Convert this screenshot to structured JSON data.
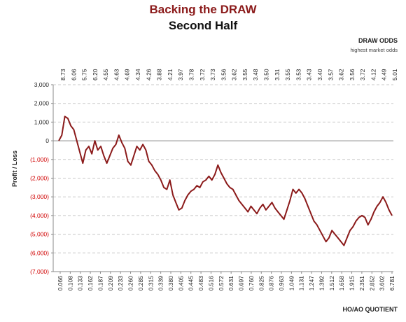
{
  "chart_data": {
    "type": "line",
    "title": "Backing the DRAW",
    "subtitle": "Second Half",
    "xlabel": "HO/AO QUOTIENT",
    "ylabel": "Profit / Loss",
    "secondary_xlabel": "DRAW ODDS",
    "secondary_xlabel_note": "highest market odds",
    "ylim": [
      -7000,
      3000
    ],
    "yticks": [
      3000,
      2000,
      1000,
      0,
      -1000,
      -2000,
      -3000,
      -4000,
      -5000,
      -6000,
      -7000
    ],
    "ytick_labels": [
      "3,000",
      "2,000",
      "1,000",
      "0",
      "(1,000)",
      "(2,000)",
      "(3,000)",
      "(4,000)",
      "(5,000)",
      "(6,000)",
      "(7,000)"
    ],
    "bottom_tick_labels": [
      "0.066",
      "0.108",
      "0.133",
      "0.162",
      "0.187",
      "0.209",
      "0.233",
      "0.260",
      "0.285",
      "0.315",
      "0.339",
      "0.380",
      "0.405",
      "0.445",
      "0.483",
      "0.516",
      "0.572",
      "0.631",
      "0.697",
      "0.760",
      "0.825",
      "0.876",
      "0.963",
      "1.049",
      "1.131",
      "1.247",
      "1.392",
      "1.512",
      "1.658",
      "1.915",
      "2.351",
      "2.852",
      "3.602",
      "6.781"
    ],
    "top_tick_labels": [
      "8.73",
      "6.06",
      "5.75",
      "6.20",
      "4.55",
      "4.63",
      "4.69",
      "4.34",
      "4.26",
      "3.88",
      "4.21",
      "3.97",
      "3.78",
      "3.72",
      "3.73",
      "3.56",
      "3.62",
      "3.55",
      "3.48",
      "3.50",
      "3.31",
      "3.55",
      "3.53",
      "3.43",
      "3.40",
      "3.57",
      "3.62",
      "3.56",
      "3.72",
      "4.12",
      "4.49",
      "5.01"
    ],
    "grid": true,
    "grid_style": "dashed horizontal",
    "series": [
      {
        "color": "#8b1a1a",
        "y": [
          0,
          300,
          1300,
          1200,
          800,
          600,
          0,
          -600,
          -1200,
          -500,
          -300,
          -700,
          0,
          -500,
          -300,
          -800,
          -1200,
          -800,
          -400,
          -200,
          300,
          -100,
          -400,
          -1100,
          -1300,
          -800,
          -300,
          -500,
          -200,
          -500,
          -1100,
          -1300,
          -1600,
          -1800,
          -2100,
          -2500,
          -2600,
          -2100,
          -2900,
          -3300,
          -3700,
          -3600,
          -3200,
          -2900,
          -2700,
          -2600,
          -2400,
          -2500,
          -2200,
          -2100,
          -1900,
          -2100,
          -1800,
          -1300,
          -1700,
          -2000,
          -2300,
          -2500,
          -2600,
          -2900,
          -3200,
          -3400,
          -3600,
          -3800,
          -3500,
          -3700,
          -3900,
          -3600,
          -3400,
          -3700,
          -3500,
          -3300,
          -3600,
          -3800,
          -4000,
          -4200,
          -3700,
          -3200,
          -2600,
          -2800,
          -2600,
          -2800,
          -3100,
          -3500,
          -3900,
          -4300,
          -4500,
          -4800,
          -5100,
          -5400,
          -5200,
          -4800,
          -5000,
          -5200,
          -5400,
          -5600,
          -5200,
          -4800,
          -4600,
          -4300,
          -4100,
          -4000,
          -4100,
          -4500,
          -4200,
          -3800,
          -3500,
          -3300,
          -3000,
          -3300,
          -3700,
          -4000
        ]
      }
    ]
  }
}
